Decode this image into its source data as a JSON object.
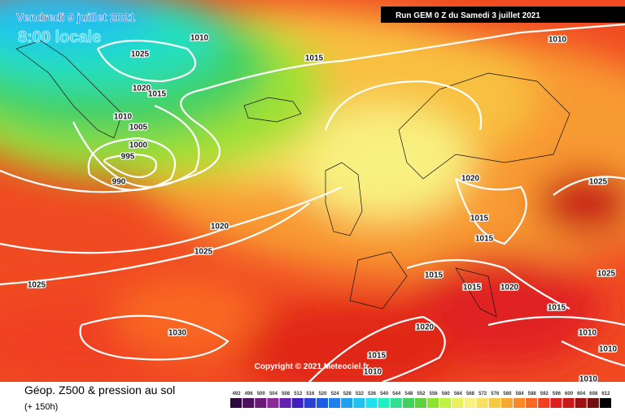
{
  "header": {
    "date": "Vendredi 9 juillet 2021",
    "time": "8:00 locale",
    "run": "Run GEM 0 Z du Samedi 3 juillet 2021"
  },
  "map": {
    "isobar_labels": [
      1010,
      1025,
      1015,
      1010,
      1020,
      1015,
      1010,
      1005,
      1000,
      995,
      990,
      1020,
      1025,
      1015,
      1015,
      1020,
      1025,
      1025,
      1015,
      1015,
      1020,
      1015,
      1030,
      1020,
      1010,
      1010,
      1015,
      1010,
      1010,
      1025
    ],
    "copyright": "Copyright © 2021 Meteociel.fr"
  },
  "footer": {
    "title": "Géop. Z500 & pression au sol",
    "lead": "(+ 150h)"
  },
  "legend": {
    "values": [
      492,
      496,
      500,
      504,
      508,
      512,
      516,
      520,
      524,
      528,
      532,
      536,
      540,
      544,
      548,
      552,
      556,
      560,
      564,
      568,
      572,
      576,
      580,
      584,
      588,
      592,
      596,
      600,
      604,
      608,
      612
    ],
    "colors": [
      "#2b0a3d",
      "#4b0f5c",
      "#6a1b7a",
      "#8a2a96",
      "#6420b0",
      "#3f1fbf",
      "#2a3fd6",
      "#1e5ce8",
      "#2080f0",
      "#20a0f0",
      "#20c0f0",
      "#20e0f0",
      "#20f0c0",
      "#30e090",
      "#40d060",
      "#60d040",
      "#90e030",
      "#c0f040",
      "#e8f060",
      "#f8f080",
      "#f8e060",
      "#f8c840",
      "#f8a830",
      "#f88828",
      "#f86820",
      "#f04020",
      "#e02020",
      "#c81818",
      "#a01010",
      "#701010",
      "#000000"
    ]
  }
}
